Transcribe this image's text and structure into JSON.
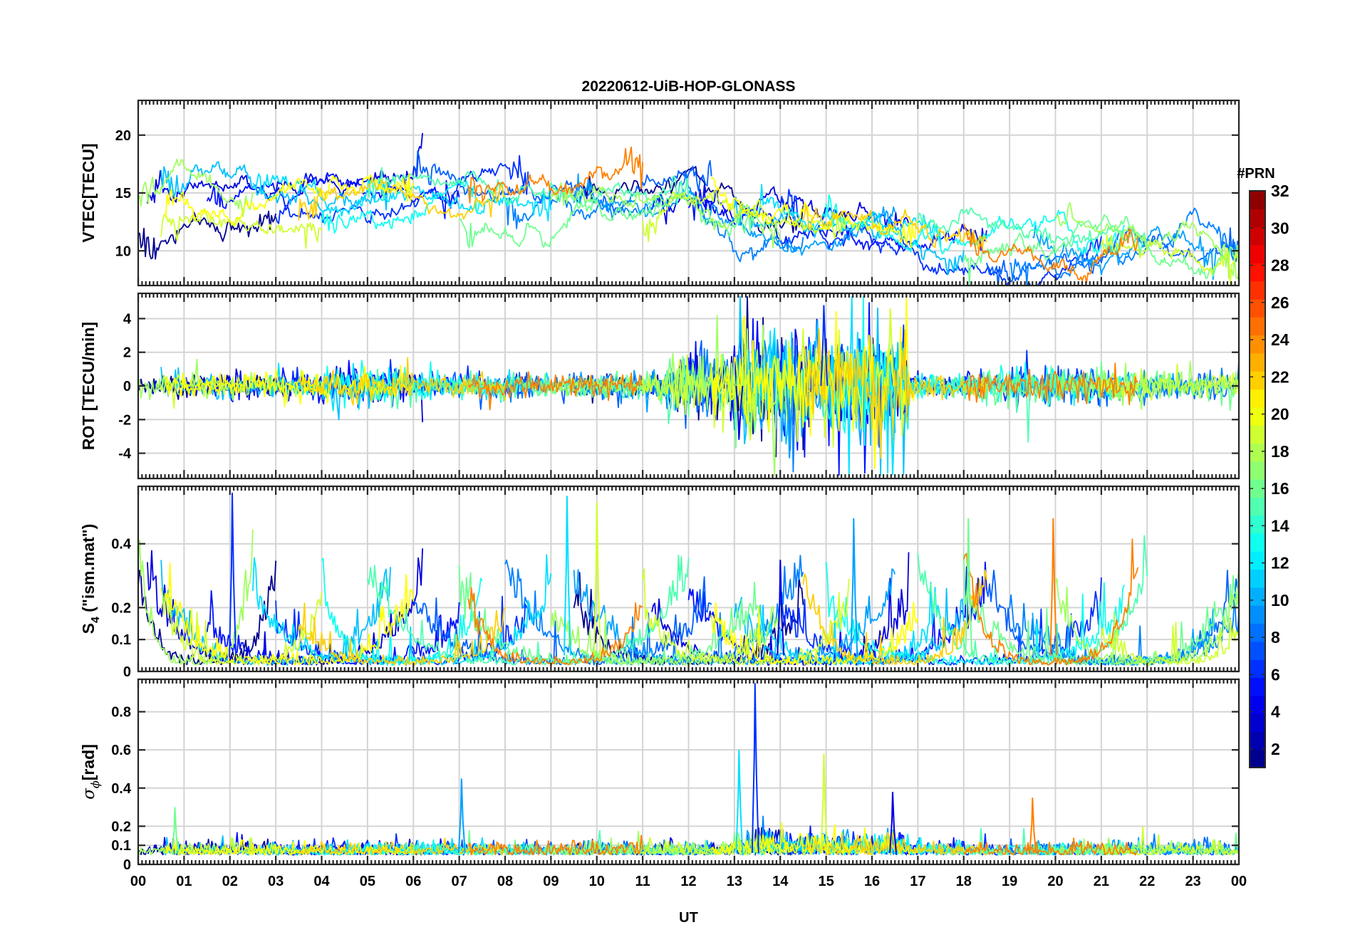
{
  "chart_data": {
    "type": "line",
    "title": "20220612-UiB-HOP-GLONASS",
    "xlabel": "UT",
    "x_ticks": [
      "00",
      "01",
      "02",
      "03",
      "04",
      "05",
      "06",
      "07",
      "08",
      "09",
      "10",
      "11",
      "12",
      "13",
      "14",
      "15",
      "16",
      "17",
      "18",
      "19",
      "20",
      "21",
      "22",
      "23",
      "00"
    ],
    "xlim": [
      0,
      24
    ],
    "grid": true,
    "colormap": "jet",
    "colorbar": {
      "label": "#PRN",
      "range": [
        1,
        32
      ],
      "ticks": [
        "2",
        "4",
        "6",
        "8",
        "10",
        "12",
        "14",
        "16",
        "18",
        "20",
        "22",
        "24",
        "26",
        "28",
        "30",
        "32"
      ]
    },
    "panels": [
      {
        "id": "vtec",
        "ylabel": "VTEC[TECU]",
        "ylim": [
          7,
          23
        ],
        "yticks": [
          10,
          15,
          20
        ],
        "ytick_labels": [
          "10",
          "15",
          "20"
        ],
        "trend": [
          [
            0,
            14.2
          ],
          [
            1,
            15
          ],
          [
            2,
            14.8
          ],
          [
            3,
            14.6
          ],
          [
            4,
            14.5
          ],
          [
            5,
            15
          ],
          [
            6,
            15
          ],
          [
            7,
            14.5
          ],
          [
            8,
            14.5
          ],
          [
            9,
            14.5
          ],
          [
            10,
            14.6
          ],
          [
            11,
            14.8
          ],
          [
            12,
            15
          ],
          [
            13,
            13.5
          ],
          [
            14,
            12.8
          ],
          [
            15,
            12.5
          ],
          [
            16,
            12.2
          ],
          [
            17,
            11.5
          ],
          [
            18,
            10.8
          ],
          [
            19,
            10.3
          ],
          [
            20,
            10.3
          ],
          [
            21,
            10.5
          ],
          [
            22,
            10.6
          ],
          [
            23,
            10.4
          ],
          [
            24,
            10.3
          ]
        ],
        "spread": 2.5
      },
      {
        "id": "rot",
        "ylabel": "ROT [TECU/min]",
        "ylim": [
          -5.5,
          5.5
        ],
        "yticks": [
          -4,
          -2,
          0,
          2,
          4
        ],
        "ytick_labels": [
          "-4",
          "-2",
          "0",
          "2",
          "4"
        ]
      },
      {
        "id": "s4",
        "ylabel": "S4 (\"ism.mat\")",
        "ylabel_main": "S",
        "ylabel_sub": "4",
        "ylabel_rest": " (\"ism.mat\")",
        "ylim": [
          0,
          0.58
        ],
        "yticks": [
          0,
          0.1,
          0.2,
          0.4
        ],
        "ytick_labels": [
          "0",
          "0.1",
          "0.2",
          "0.4"
        ]
      },
      {
        "id": "sigphi",
        "ylabel": "σϕ[rad]",
        "ylabel_main": "σ",
        "ylabel_sub": "ϕ",
        "ylabel_rest": "[rad]",
        "ylim": [
          0,
          0.97
        ],
        "yticks": [
          0,
          0.1,
          0.2,
          0.4,
          0.6,
          0.8
        ],
        "ytick_labels": [
          "0",
          "0.1",
          "0.2",
          "0.4",
          "0.6",
          "0.8"
        ]
      }
    ],
    "series": [
      {
        "prn": 1,
        "color": "#00008f",
        "arcs": [
          [
            0,
            3.0
          ],
          [
            9.5,
            14.5
          ]
        ]
      },
      {
        "prn": 3,
        "color": "#0000df",
        "arcs": [
          [
            0.2,
            6.2
          ],
          [
            11.2,
            16.8
          ]
        ]
      },
      {
        "prn": 4,
        "color": "#0010ff",
        "arcs": [
          [
            1.5,
            7.0
          ],
          [
            12.0,
            18.5
          ]
        ]
      },
      {
        "prn": 5,
        "color": "#0030ff",
        "arcs": [
          [
            3.0,
            8.5
          ],
          [
            14.0,
            21.0
          ]
        ]
      },
      {
        "prn": 7,
        "color": "#0060ff",
        "arcs": [
          [
            6.0,
            12.5
          ],
          [
            18.5,
            24.0
          ]
        ]
      },
      {
        "prn": 8,
        "color": "#0080ff",
        "arcs": [
          [
            8.0,
            14.5
          ],
          [
            19.0,
            24.0
          ]
        ]
      },
      {
        "prn": 10,
        "color": "#00a0ff",
        "arcs": [
          [
            9.5,
            16.5
          ],
          [
            19.5,
            23.5
          ]
        ]
      },
      {
        "prn": 11,
        "color": "#00c0ff",
        "arcs": [
          [
            0.5,
            5.5
          ],
          [
            13.0,
            18.0
          ]
        ]
      },
      {
        "prn": 12,
        "color": "#00e0ff",
        "arcs": [
          [
            2.5,
            9.0
          ],
          [
            13.5,
            17.5
          ]
        ]
      },
      {
        "prn": 13,
        "color": "#10fff0",
        "arcs": [
          [
            4.0,
            7.5
          ],
          [
            15.0,
            21.5
          ]
        ]
      },
      {
        "prn": 15,
        "color": "#50ffb0",
        "arcs": [
          [
            5.0,
            12.0
          ],
          [
            17.0,
            22.0
          ]
        ]
      },
      {
        "prn": 16,
        "color": "#70ff90",
        "arcs": [
          [
            7.0,
            13.5
          ],
          [
            18.0,
            24.0
          ]
        ]
      },
      {
        "prn": 17,
        "color": "#a0ff60",
        "arcs": [
          [
            0,
            2.5
          ],
          [
            9.0,
            14.0
          ],
          [
            20.0,
            24.0
          ]
        ]
      },
      {
        "prn": 18,
        "color": "#d0ff30",
        "arcs": [
          [
            0.5,
            4.0
          ],
          [
            11.0,
            15.5
          ],
          [
            21.0,
            24.0
          ]
        ]
      },
      {
        "prn": 20,
        "color": "#ffff00",
        "arcs": [
          [
            0.6,
            6.0
          ],
          [
            12.5,
            17.0
          ]
        ]
      },
      {
        "prn": 21,
        "color": "#ffd000",
        "arcs": [
          [
            3.5,
            8.0
          ],
          [
            14.5,
            18.5
          ]
        ]
      },
      {
        "prn": 23,
        "color": "#ff8000",
        "arcs": [
          [
            7.2,
            11.0
          ],
          [
            18.0,
            21.8
          ]
        ]
      }
    ],
    "events": [
      {
        "panel": "s4",
        "t": 2.05,
        "v": 0.56
      },
      {
        "panel": "s4",
        "t": 9.35,
        "v": 0.55
      },
      {
        "panel": "s4",
        "t": 10.0,
        "v": 0.53
      },
      {
        "panel": "s4",
        "t": 14.0,
        "v": 0.35
      },
      {
        "panel": "s4",
        "t": 15.6,
        "v": 0.48
      },
      {
        "panel": "s4",
        "t": 18.1,
        "v": 0.48
      },
      {
        "panel": "s4",
        "t": 19.95,
        "v": 0.48
      },
      {
        "panel": "rot",
        "t": 14.95,
        "v": 4.8
      },
      {
        "panel": "rot",
        "t": 16.45,
        "v": -5.3
      },
      {
        "panel": "rot",
        "t": 16.4,
        "v": 4.6
      },
      {
        "panel": "rot",
        "t": 13.1,
        "v": -3.2
      },
      {
        "panel": "rot",
        "t": 14.2,
        "v": -4.3
      },
      {
        "panel": "sigphi",
        "t": 13.45,
        "v": 0.95
      },
      {
        "panel": "sigphi",
        "t": 13.1,
        "v": 0.6
      },
      {
        "panel": "sigphi",
        "t": 14.95,
        "v": 0.58
      },
      {
        "panel": "sigphi",
        "t": 16.45,
        "v": 0.38
      },
      {
        "panel": "sigphi",
        "t": 7.05,
        "v": 0.45
      },
      {
        "panel": "sigphi",
        "t": 0.8,
        "v": 0.3
      },
      {
        "panel": "sigphi",
        "t": 19.5,
        "v": 0.35
      }
    ]
  }
}
